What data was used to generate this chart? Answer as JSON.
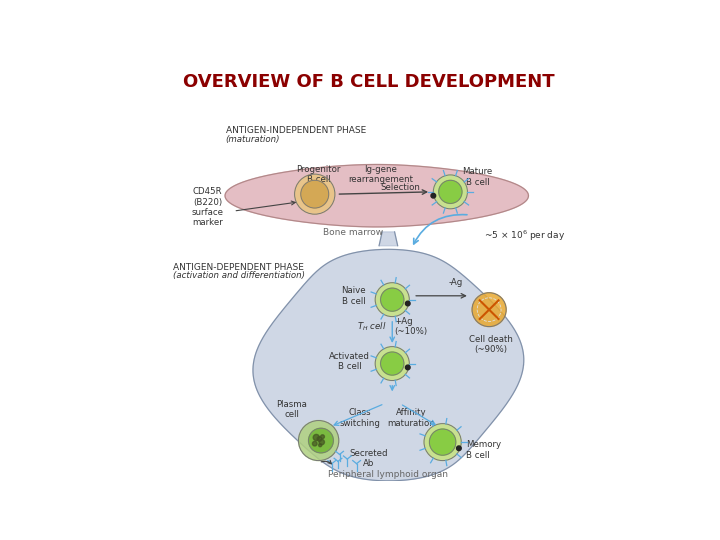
{
  "title": "OVERVIEW OF B CELL DEVELOPMENT",
  "title_color": "#8b0000",
  "title_fontsize": 13,
  "bg_color": "#ffffff",
  "phase1_label": "ANTIGEN-INDEPENDENT PHASE",
  "phase1_sublabel": "(maturation)",
  "phase2_label": "ANTIGEN-DEPENDENT PHASE",
  "phase2_sublabel": "(activation and differentiation)",
  "bone_marrow_label": "Bone marrow",
  "peripheral_label": "Peripheral lymphoid organ",
  "upper_blob_color": "#dba8b0",
  "lower_blob_color": "#b0bdd4",
  "progenitor_outer": "#e8c48a",
  "progenitor_inner": "#d4a855",
  "mature_outer": "#c8e090",
  "mature_inner": "#88cc44",
  "cell_green_outer": "#c8e090",
  "cell_green_inner": "#88cc44",
  "dead_cell_color": "#e8a830",
  "dead_x_color": "#cc5500",
  "plasma_fill": "#b0d080",
  "arrow_dark": "#444444",
  "arrow_blue": "#5aace0",
  "outline_color": "#777777",
  "labels": {
    "progenitor": "Progenitor\nB cell",
    "mature": "Mature\nB cell",
    "ig_gene": "Ig-gene\nrearrangement",
    "selection": "Selection",
    "cd45r": "CD45R\n(B220)\nsurface\nmarker",
    "naive": "Naive\nB cell",
    "plus_ag": "+Ag\n(~10%)",
    "minus_ag": "-Ag",
    "cell_death": "Cell death\n(~90%)",
    "activated": "Activated\nB cell",
    "class_switch": "Class\nswitching",
    "affinity": "Affinity\nmaturation",
    "plasma": "Plasma\ncell",
    "memory": "Memory\nB cell",
    "secreted": "Secreted\nAb",
    "flux": "~5 × 10"
  }
}
